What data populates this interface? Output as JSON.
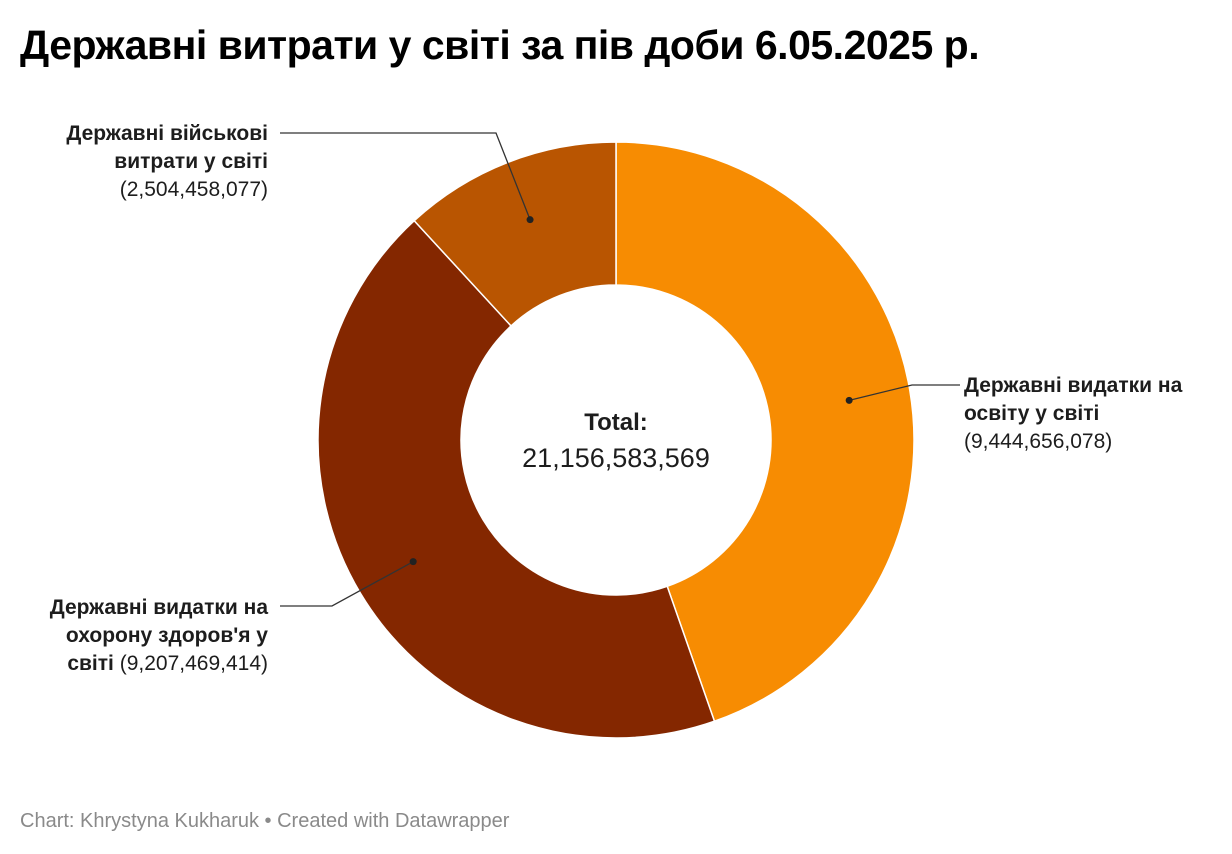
{
  "title": "Державні витрати у світі за пів доби 6.05.2025 р.",
  "footer": "Chart: Khrystyna Kukharuk • Created with Datawrapper",
  "chart_data": {
    "type": "pie",
    "donut": true,
    "title": "Державні витрати у світі за пів доби 6.05.2025 р.",
    "center_label": "Total:",
    "center_value": "21,156,583,569",
    "total": 21156583569,
    "slices": [
      {
        "name_lines": [
          "Державні видатки на",
          "освіту у світі"
        ],
        "value": 9444656078,
        "value_label": "(9,444,656,078)",
        "color": "#f78c02"
      },
      {
        "name_lines": [
          "Державні видатки на",
          "охорону здоров'я у",
          "світі"
        ],
        "value": 9207469414,
        "value_label": "(9,207,469,414)",
        "color": "#842700"
      },
      {
        "name_lines": [
          "Державні військові",
          "витрати у світі"
        ],
        "value": 2504458077,
        "value_label": "(2,504,458,077)",
        "color": "#b95501"
      }
    ]
  }
}
